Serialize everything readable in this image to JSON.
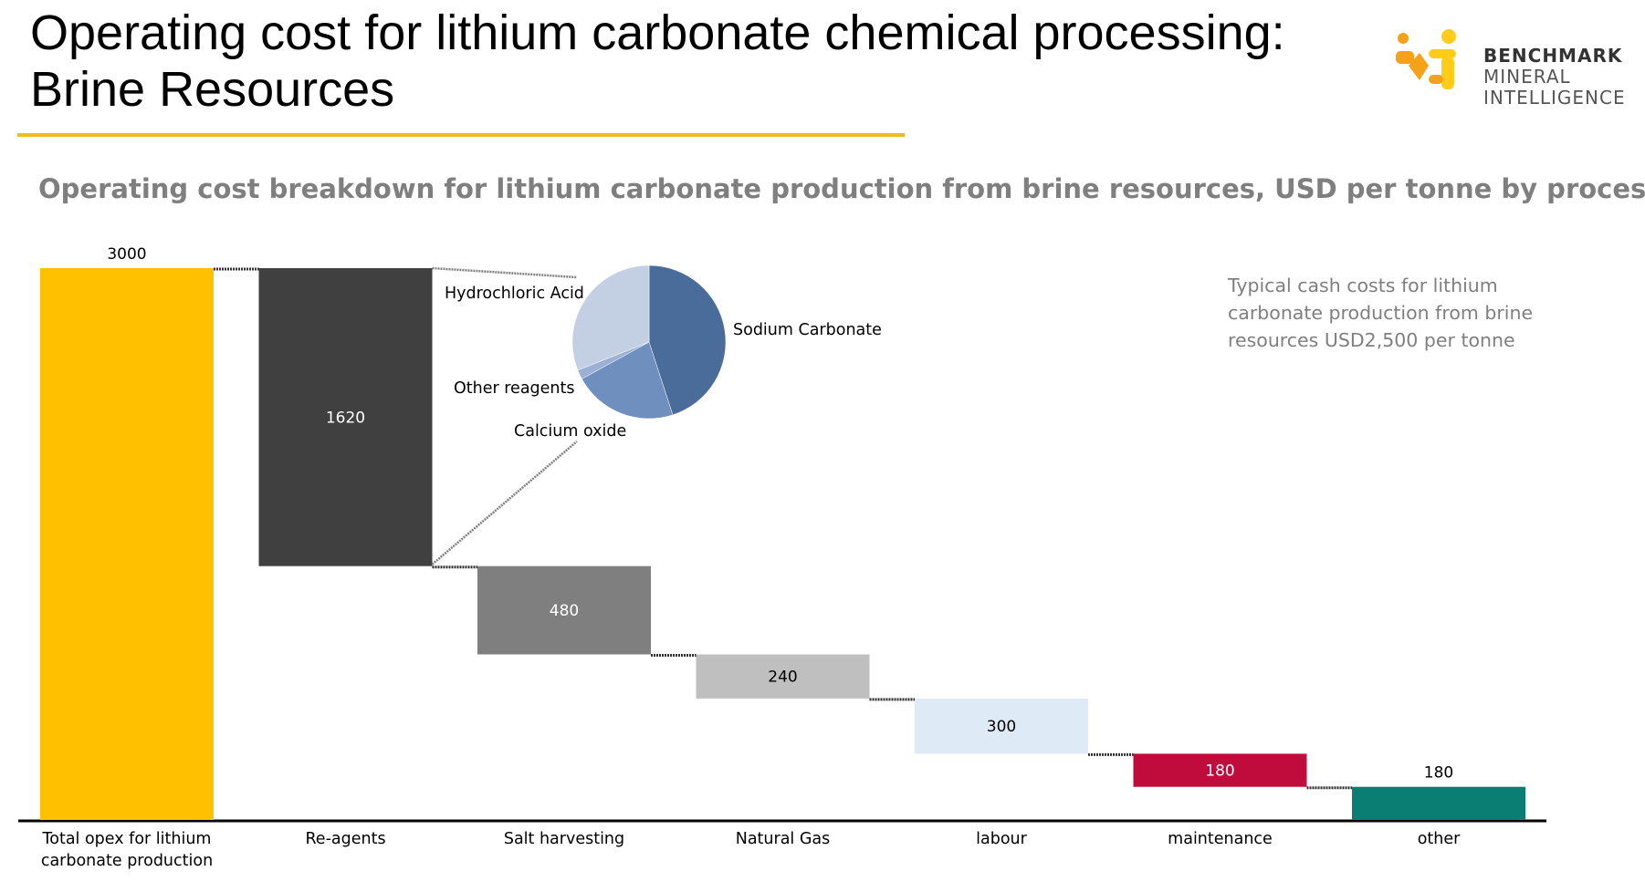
{
  "slide": {
    "title_line1": "Operating cost for lithium carbonate chemical processing:",
    "title_line2": "Brine Resources",
    "subtitle": "Operating cost breakdown for lithium carbonate production from brine resources, USD per tonne by process",
    "note": "Typical cash costs for lithium carbonate production from brine resources USD2,500 per tonne"
  },
  "logo": {
    "line1": "BENCHMARK",
    "line2": "MINERAL",
    "line3": "INTELLIGENCE",
    "icon": "benchmark-logo-mark",
    "colors": {
      "orange": "#F5A21A",
      "yellow": "#FFCC1A"
    }
  },
  "colors": {
    "accent_rule": "#F2BB1D",
    "subtitle": "#7F7F7F"
  },
  "chart_data": [
    {
      "type": "bar",
      "subtype": "waterfall",
      "categories": [
        "Total opex for lithium carbonate production",
        "Re-agents",
        "Salt harvesting",
        "Natural Gas",
        "labour",
        "maintenance",
        "other"
      ],
      "category_lines": [
        [
          "Total opex for lithium",
          "carbonate production"
        ],
        [
          "Re-agents"
        ],
        [
          "Salt harvesting"
        ],
        [
          "Natural Gas"
        ],
        [
          "labour"
        ],
        [
          "maintenance"
        ],
        [
          "other"
        ]
      ],
      "values": [
        3000,
        1620,
        480,
        240,
        300,
        180,
        180
      ],
      "value_labels": [
        "3000",
        "1620",
        "480",
        "240",
        "300",
        "180",
        "180"
      ],
      "total_index": 0,
      "colors": [
        "#FFC000",
        "#404040",
        "#7F7F7F",
        "#BFBFBF",
        "#DEEAF6",
        "#C00C3C",
        "#0A7E72"
      ],
      "label_colors": [
        "#000000",
        "#FFFFFF",
        "#FFFFFF",
        "#000000",
        "#000000",
        "#FFFFFF",
        "#000000"
      ],
      "label_position": [
        "above",
        "inside",
        "inside",
        "inside",
        "inside",
        "inside",
        "above"
      ],
      "ylim": [
        0,
        3000
      ],
      "grid": false,
      "legend": "none"
    },
    {
      "type": "pie",
      "breakdown_of": "Re-agents",
      "labels": [
        "Sodium Carbonate",
        "Calcium oxide",
        "Other reagents",
        "Hydrochloric Acid"
      ],
      "values": [
        45,
        22,
        2,
        31
      ],
      "colors": [
        "#4A6C9B",
        "#6F8FBE",
        "#9BB0D3",
        "#C3D0E3"
      ],
      "start_angle_deg": 0,
      "direction": "clockwise",
      "legend": "none"
    }
  ]
}
